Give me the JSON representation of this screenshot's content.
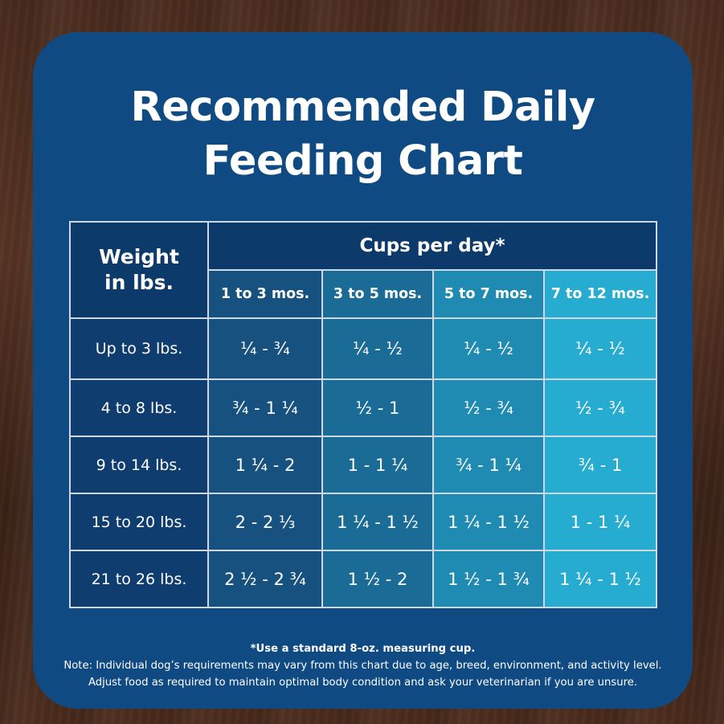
{
  "title_line1": "Recommended Daily",
  "title_line2": "Feeding Chart",
  "chart_data": {
    "type": "table",
    "corner_header_line1": "Weight",
    "corner_header_line2": "in lbs.",
    "group_header": "Cups per day*",
    "columns": [
      "1 to 3 mos.",
      "3 to 5 mos.",
      "5 to 7 mos.",
      "7 to 12 mos."
    ],
    "rows": [
      {
        "weight": "Up to 3 lbs.",
        "values": [
          "¼ - ¾",
          "¼  - ½",
          "¼  - ½",
          "¼  - ½"
        ]
      },
      {
        "weight": "4 to 8 lbs.",
        "values": [
          "¾ - 1 ¼",
          "½ - 1",
          "½ - ¾",
          "½ - ¾"
        ]
      },
      {
        "weight": "9 to 14 lbs.",
        "values": [
          "1 ¼ - 2",
          "1 - 1 ¼",
          "¾ - 1 ¼",
          "¾ - 1"
        ]
      },
      {
        "weight": "15 to 20 lbs.",
        "values": [
          "2 - 2 ⅓",
          "1 ¼ - 1 ½",
          "1 ¼ - 1 ½",
          "1 - 1 ¼"
        ]
      },
      {
        "weight": "21 to 26 lbs.",
        "values": [
          "2 ½ - 2 ¾",
          "1 ½ - 2",
          "1 ½  - 1 ¾",
          "1 ¼  - 1 ½"
        ]
      }
    ],
    "colors": {
      "header_dark": "#0c3a6a",
      "weight_column": "#103d6f",
      "column_fills": [
        "#16517f",
        "#1a6b96",
        "#1f8bb2",
        "#25acd0"
      ],
      "border": "#cfd9e6"
    }
  },
  "footnote": "*Use a standard 8-oz. measuring cup.",
  "note_line1": "Note: Individual dog’s requirements may vary from this chart due to age, breed, environment, and activity level.",
  "note_line2": "Adjust food as required to maintain optimal body condition and ask your veterinarian if you are unsure."
}
